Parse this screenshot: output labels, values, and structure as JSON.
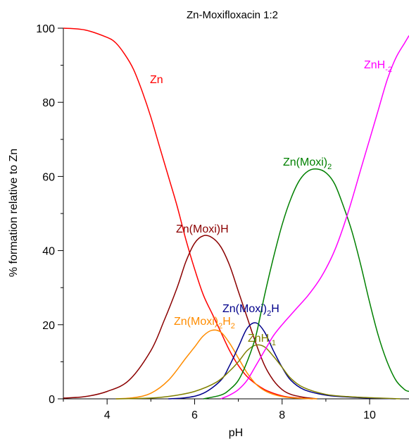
{
  "chart_data": {
    "type": "line",
    "title": "Zn-Moxifloxacin 1:2",
    "xlabel": "pH",
    "ylabel": "% formation relative to Zn",
    "xlim": [
      3.0,
      10.9
    ],
    "ylim": [
      0,
      100
    ],
    "xticks": [
      4,
      6,
      8,
      10
    ],
    "yticks": [
      0,
      20,
      40,
      60,
      80,
      100
    ],
    "grid": false,
    "legend": "inline labels",
    "series": [
      {
        "name": "Zn",
        "label_main": "Zn",
        "label_sub": "",
        "color": "#ff0000",
        "x": [
          3.0,
          3.5,
          4.0,
          4.2,
          4.4,
          4.6,
          4.8,
          5.0,
          5.2,
          5.4,
          5.6,
          5.8,
          6.0,
          6.2,
          6.4,
          6.6,
          6.8,
          7.0,
          7.2,
          7.4,
          7.6,
          7.8,
          8.0,
          8.2,
          8.4,
          8.7
        ],
        "y": [
          100,
          99.5,
          97.5,
          96,
          93,
          89,
          83,
          76,
          68,
          60,
          52,
          43,
          35,
          28,
          23,
          18,
          13,
          9,
          6,
          4,
          2.5,
          1.5,
          0.8,
          0.4,
          0.2,
          0
        ]
      },
      {
        "name": "Zn(Moxi)H",
        "label_main": "Zn(Moxi)H",
        "label_sub": "",
        "color": "#8b0000",
        "x": [
          3.0,
          3.5,
          4.0,
          4.5,
          5.0,
          5.3,
          5.6,
          5.8,
          6.0,
          6.2,
          6.4,
          6.6,
          6.8,
          7.0,
          7.2,
          7.4,
          7.6,
          7.8,
          8.0,
          8.2,
          8.5,
          8.8
        ],
        "y": [
          0.2,
          0.6,
          2,
          5,
          13,
          21,
          30,
          37,
          42,
          44,
          43.5,
          41,
          36,
          29,
          22,
          15,
          9,
          5,
          2.5,
          1.2,
          0.4,
          0
        ]
      },
      {
        "name": "Zn(Moxi)2H2",
        "label_main": "Zn(Moxi)",
        "label_sub": "2",
        "label_tail": "H",
        "label_sub2": "2",
        "color": "#ff8c00",
        "x": [
          4.2,
          4.6,
          5.0,
          5.4,
          5.8,
          6.0,
          6.2,
          6.4,
          6.6,
          6.8,
          7.0,
          7.2,
          7.4,
          7.6,
          7.8,
          8.0,
          8.2,
          8.5,
          8.8
        ],
        "y": [
          0,
          0.3,
          1.5,
          5,
          11,
          14,
          17,
          18.5,
          18,
          15,
          11,
          7,
          4,
          2.2,
          1.2,
          0.6,
          0.3,
          0.1,
          0
        ]
      },
      {
        "name": "Zn(Moxi)2H",
        "label_main": "Zn(Moxi)",
        "label_sub": "2",
        "label_tail": "H",
        "label_sub2": "",
        "color": "#00008b",
        "x": [
          5.4,
          5.8,
          6.2,
          6.6,
          6.8,
          7.0,
          7.2,
          7.4,
          7.6,
          7.8,
          8.0,
          8.2,
          8.5,
          9.0,
          9.5,
          10.0,
          10.6
        ],
        "y": [
          0,
          0.3,
          1.5,
          5,
          9,
          14,
          19,
          20.5,
          18,
          13,
          8.5,
          5,
          2.5,
          1,
          0.5,
          0.2,
          0
        ]
      },
      {
        "name": "ZnH-1",
        "label_main": "ZnH",
        "label_sub": "-1",
        "label_tail": "",
        "label_sub2": "",
        "color": "#808000",
        "x": [
          4.2,
          5.0,
          5.5,
          6.0,
          6.5,
          6.8,
          7.0,
          7.2,
          7.4,
          7.6,
          7.8,
          8.0,
          8.2,
          8.5,
          9.0,
          9.5,
          10.0,
          10.5,
          10.7
        ],
        "y": [
          0,
          0.2,
          0.8,
          2,
          4.5,
          7.5,
          10,
          13,
          14.5,
          14,
          11.5,
          8.5,
          5.5,
          3,
          1.2,
          0.6,
          0.3,
          0.1,
          0
        ]
      },
      {
        "name": "Zn(Moxi)2",
        "label_main": "Zn(Moxi)",
        "label_sub": "2",
        "label_tail": "",
        "label_sub2": "",
        "color": "#008000",
        "x": [
          6.2,
          6.6,
          6.8,
          7.0,
          7.2,
          7.4,
          7.6,
          7.8,
          8.0,
          8.2,
          8.4,
          8.6,
          8.8,
          9.0,
          9.2,
          9.4,
          9.6,
          9.8,
          10.0,
          10.2,
          10.4,
          10.6,
          10.8,
          10.9
        ],
        "y": [
          0,
          1,
          2.5,
          5,
          10,
          17,
          28,
          38,
          47,
          54,
          59,
          61.5,
          62,
          61,
          58,
          52,
          45,
          36,
          26,
          17,
          10,
          5,
          2.5,
          2
        ]
      },
      {
        "name": "ZnH-2",
        "label_main": "ZnH",
        "label_sub": "-2",
        "label_tail": "",
        "label_sub2": "",
        "color": "#ff00ff",
        "x": [
          6.6,
          6.8,
          7.0,
          7.2,
          7.4,
          7.6,
          7.8,
          8.0,
          8.3,
          8.6,
          8.9,
          9.2,
          9.5,
          9.8,
          10.0,
          10.2,
          10.4,
          10.6,
          10.8,
          10.9
        ],
        "y": [
          0,
          1,
          2.5,
          5,
          9,
          13,
          17,
          20,
          24,
          28,
          33,
          40,
          50,
          62,
          70,
          78,
          86,
          92,
          96,
          98
        ]
      }
    ]
  }
}
